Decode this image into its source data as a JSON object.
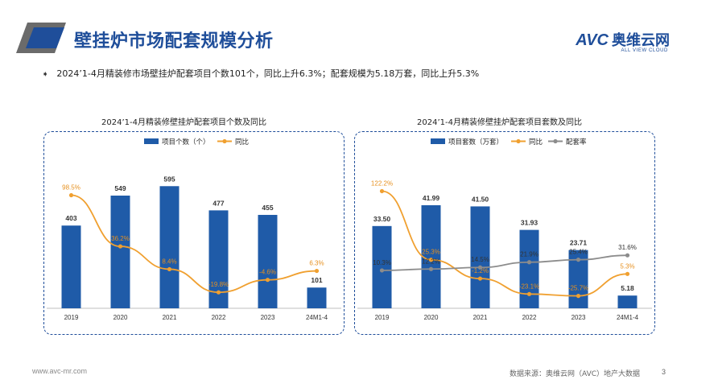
{
  "header": {
    "title": "壁挂炉市场配套规模分析",
    "logo_text": "AVC",
    "logo_cn": "奥维云网",
    "logo_sub": "ALL VIEW CLOUD"
  },
  "summary": "2024’1-4月精装修市场壁挂炉配套项目个数101个，同比上升6.3%；配套规模为5.18万套，同比上升5.3%",
  "footer": {
    "url": "www.avc-mr.com",
    "source": "数据来源：奥维云网（AVC）地产大数据",
    "page": "3"
  },
  "colors": {
    "bar": "#1f5ba8",
    "yoy": "#f0a030",
    "rate": "#8c8c8c",
    "accent": "#1f4e9a"
  },
  "chart_data": [
    {
      "type": "bar",
      "title": "2024’1-4月精装修壁挂炉配套项目个数及同比",
      "categories": [
        "2019",
        "2020",
        "2021",
        "2022",
        "2023",
        "24M1-4"
      ],
      "series": [
        {
          "name": "项目个数（个）",
          "kind": "bar",
          "values": [
            403,
            549,
            595,
            477,
            455,
            101
          ],
          "labels": [
            "403",
            "549",
            "595",
            "477",
            "455",
            "101"
          ]
        },
        {
          "name": "同比",
          "kind": "line",
          "values": [
            98.5,
            36.2,
            8.4,
            -19.8,
            -4.6,
            6.3
          ],
          "labels": [
            "98.5%",
            "36.2%",
            "8.4%",
            "-19.8%",
            "-4.6%",
            "6.3%"
          ]
        }
      ]
    },
    {
      "type": "bar",
      "title": "2024’1-4月精装修壁挂炉配套项目套数及同比",
      "categories": [
        "2019",
        "2020",
        "2021",
        "2022",
        "2023",
        "24M1-4"
      ],
      "series": [
        {
          "name": "项目套数（万套）",
          "kind": "bar",
          "values": [
            33.5,
            41.99,
            41.5,
            31.93,
            23.71,
            5.18
          ],
          "labels": [
            "33.50",
            "41.99",
            "41.50",
            "31.93",
            "23.71",
            "5.18"
          ]
        },
        {
          "name": "同比",
          "kind": "line",
          "values": [
            122.2,
            25.3,
            -1.2,
            -23.1,
            -25.7,
            5.3
          ],
          "labels": [
            "122.2%",
            "25.3%",
            "-1.2%",
            "-23.1%",
            "-25.7%",
            "5.3%"
          ]
        },
        {
          "name": "配套率",
          "kind": "line",
          "values": [
            10.3,
            12.2,
            14.5,
            21.9,
            25.4,
            31.6
          ],
          "labels": [
            "10.3%",
            "12.2%",
            "14.5%",
            "21.9%",
            "25.4%",
            "31.6%"
          ]
        }
      ]
    }
  ]
}
